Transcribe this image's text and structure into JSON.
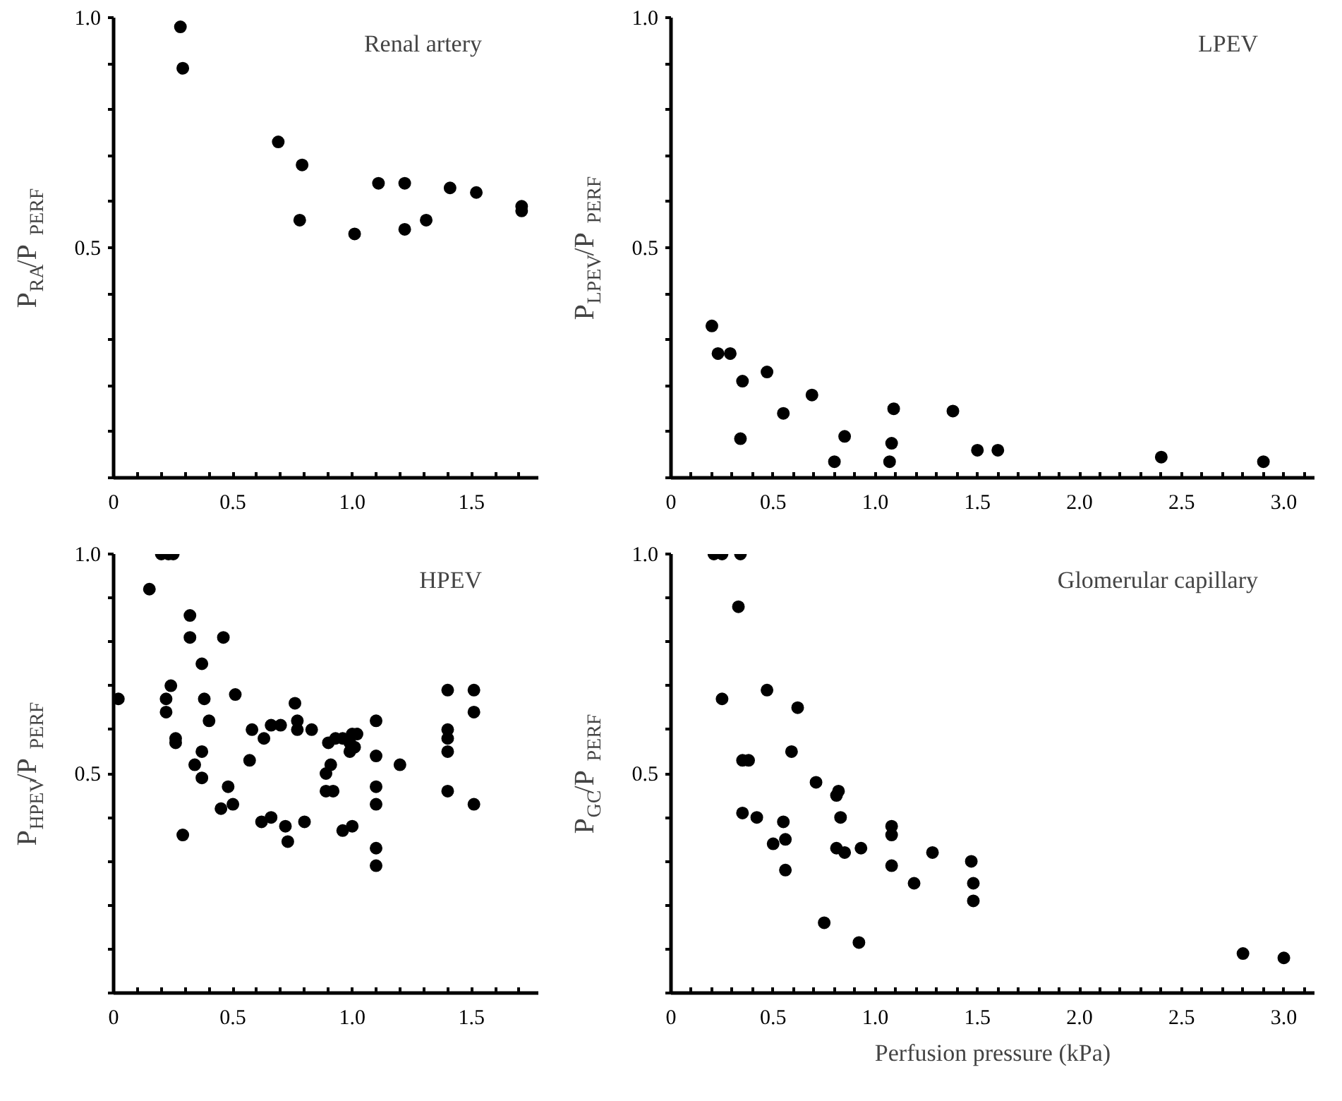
{
  "chart_data": [
    {
      "type": "scatter",
      "title": "Renal artery",
      "ylabel": "P$_{RA}$/P$_{PERF}$",
      "marker": "circle",
      "grid": false,
      "xlim": [
        0,
        1.78
      ],
      "ylim": [
        0,
        1.0
      ],
      "xticks": [
        0,
        {
          "value": 0.1,
          "label": null
        },
        {
          "value": 0.2,
          "label": null
        },
        {
          "value": 0.3,
          "label": null
        },
        {
          "value": 0.4,
          "label": null
        },
        {
          "value": 0.5,
          "label": "0.5"
        },
        {
          "value": 0.6,
          "label": null
        },
        {
          "value": 0.7,
          "label": null
        },
        {
          "value": 0.8,
          "label": null
        },
        {
          "value": 0.9,
          "label": null
        },
        {
          "value": 1.0,
          "label": "1.0"
        },
        {
          "value": 1.1,
          "label": null
        },
        {
          "value": 1.2,
          "label": null
        },
        {
          "value": 1.3,
          "label": null
        },
        {
          "value": 1.4,
          "label": null
        },
        {
          "value": 1.5,
          "label": "1.5"
        },
        {
          "value": 1.6,
          "label": null
        },
        {
          "value": 1.7,
          "label": null
        }
      ],
      "yticks": [
        {
          "value": 0,
          "label": null
        },
        {
          "value": 0.1,
          "label": null
        },
        {
          "value": 0.2,
          "label": null
        },
        {
          "value": 0.3,
          "label": null
        },
        {
          "value": 0.4,
          "label": null
        },
        {
          "value": 0.5,
          "label": "0.5"
        },
        {
          "value": 0.6,
          "label": null
        },
        {
          "value": 0.7,
          "label": null
        },
        {
          "value": 0.8,
          "label": null
        },
        {
          "value": 0.9,
          "label": null
        },
        {
          "value": 1.0,
          "label": "1.0"
        }
      ],
      "series": [
        {
          "color": "#000000",
          "x": [
            0.28,
            0.29,
            0.69,
            0.79,
            0.78,
            1.01,
            1.11,
            1.22,
            1.22,
            1.31,
            1.41,
            1.52,
            1.71,
            1.71
          ],
          "values": [
            0.98,
            0.89,
            0.73,
            0.68,
            0.56,
            0.53,
            0.64,
            0.64,
            0.54,
            0.56,
            0.63,
            0.62,
            0.59,
            0.58
          ]
        }
      ]
    },
    {
      "type": "scatter",
      "title": "LPEV",
      "ylabel": "P$_{LPEV}$/P$_{PERF}$",
      "marker": "circle",
      "grid": false,
      "xlim": [
        0,
        3.15
      ],
      "ylim": [
        0,
        1.0
      ],
      "xticks": [
        0,
        {
          "value": 0.1,
          "label": null
        },
        {
          "value": 0.2,
          "label": null
        },
        {
          "value": 0.3,
          "label": null
        },
        {
          "value": 0.4,
          "label": null
        },
        {
          "value": 0.5,
          "label": "0.5"
        },
        {
          "value": 0.6,
          "label": null
        },
        {
          "value": 0.7,
          "label": null
        },
        {
          "value": 0.8,
          "label": null
        },
        {
          "value": 0.9,
          "label": null
        },
        {
          "value": 1.0,
          "label": "1.0"
        },
        {
          "value": 1.1,
          "label": null
        },
        {
          "value": 1.2,
          "label": null
        },
        {
          "value": 1.3,
          "label": null
        },
        {
          "value": 1.4,
          "label": null
        },
        {
          "value": 1.5,
          "label": "1.5"
        },
        {
          "value": 1.6,
          "label": null
        },
        {
          "value": 1.7,
          "label": null
        },
        {
          "value": 1.8,
          "label": null
        },
        {
          "value": 1.9,
          "label": null
        },
        {
          "value": 2.0,
          "label": "2.0"
        },
        {
          "value": 2.1,
          "label": null
        },
        {
          "value": 2.2,
          "label": null
        },
        {
          "value": 2.3,
          "label": null
        },
        {
          "value": 2.4,
          "label": null
        },
        {
          "value": 2.5,
          "label": "2.5"
        },
        {
          "value": 2.6,
          "label": null
        },
        {
          "value": 2.7,
          "label": null
        },
        {
          "value": 2.8,
          "label": null
        },
        {
          "value": 2.9,
          "label": null
        },
        {
          "value": 3.0,
          "label": "3.0"
        },
        {
          "value": 3.1,
          "label": null
        }
      ],
      "yticks": [
        {
          "value": 0,
          "label": null
        },
        {
          "value": 0.1,
          "label": null
        },
        {
          "value": 0.2,
          "label": null
        },
        {
          "value": 0.3,
          "label": null
        },
        {
          "value": 0.4,
          "label": null
        },
        {
          "value": 0.5,
          "label": "0.5"
        },
        {
          "value": 0.6,
          "label": null
        },
        {
          "value": 0.7,
          "label": null
        },
        {
          "value": 0.8,
          "label": null
        },
        {
          "value": 0.9,
          "label": null
        },
        {
          "value": 1.0,
          "label": "1.0"
        }
      ],
      "series": [
        {
          "color": "#000000",
          "x": [
            0.2,
            0.23,
            0.29,
            0.35,
            0.47,
            0.34,
            0.55,
            0.69,
            0.8,
            0.85,
            1.09,
            1.08,
            1.07,
            1.38,
            1.5,
            1.6,
            2.4,
            2.9
          ],
          "values": [
            0.33,
            0.27,
            0.27,
            0.21,
            0.23,
            0.085,
            0.14,
            0.18,
            0.035,
            0.09,
            0.15,
            0.075,
            0.035,
            0.145,
            0.06,
            0.06,
            0.045,
            0.035
          ]
        }
      ]
    },
    {
      "type": "scatter",
      "title": "HPEV",
      "ylabel": "P$_{HPEV}$/P$_{PERF}$",
      "marker": "circle",
      "grid": false,
      "xlim": [
        0,
        1.78
      ],
      "ylim": [
        0,
        1.0
      ],
      "xticks": [
        0,
        {
          "value": 0.1,
          "label": null
        },
        {
          "value": 0.2,
          "label": null
        },
        {
          "value": 0.3,
          "label": null
        },
        {
          "value": 0.4,
          "label": null
        },
        {
          "value": 0.5,
          "label": "0.5"
        },
        {
          "value": 0.6,
          "label": null
        },
        {
          "value": 0.7,
          "label": null
        },
        {
          "value": 0.8,
          "label": null
        },
        {
          "value": 0.9,
          "label": null
        },
        {
          "value": 1.0,
          "label": "1.0"
        },
        {
          "value": 1.1,
          "label": null
        },
        {
          "value": 1.2,
          "label": null
        },
        {
          "value": 1.3,
          "label": null
        },
        {
          "value": 1.4,
          "label": null
        },
        {
          "value": 1.5,
          "label": "1.5"
        },
        {
          "value": 1.6,
          "label": null
        },
        {
          "value": 1.7,
          "label": null
        }
      ],
      "yticks": [
        {
          "value": 0,
          "label": null
        },
        {
          "value": 0.1,
          "label": null
        },
        {
          "value": 0.2,
          "label": null
        },
        {
          "value": 0.3,
          "label": null
        },
        {
          "value": 0.4,
          "label": null
        },
        {
          "value": 0.5,
          "label": "0.5"
        },
        {
          "value": 0.6,
          "label": null
        },
        {
          "value": 0.7,
          "label": null
        },
        {
          "value": 0.8,
          "label": null
        },
        {
          "value": 0.9,
          "label": null
        },
        {
          "value": 1.0,
          "label": "1.0"
        }
      ],
      "series": [
        {
          "color": "#000000",
          "x": [
            0.02,
            0.15,
            0.2,
            0.23,
            0.25,
            0.24,
            0.22,
            0.22,
            0.26,
            0.26,
            0.29,
            0.32,
            0.32,
            0.37,
            0.38,
            0.4,
            0.37,
            0.34,
            0.37,
            0.46,
            0.51,
            0.48,
            0.45,
            0.5,
            0.57,
            0.58,
            0.63,
            0.66,
            0.7,
            0.62,
            0.66,
            0.76,
            0.77,
            0.77,
            0.83,
            0.72,
            0.73,
            0.8,
            0.9,
            0.89,
            0.91,
            0.89,
            0.92,
            0.93,
            0.96,
            0.99,
            1.0,
            1.02,
            1.01,
            0.99,
            0.96,
            1.0,
            1.1,
            1.1,
            1.1,
            1.1,
            1.1,
            1.1,
            1.2,
            1.4,
            1.4,
            1.4,
            1.4,
            1.4,
            1.51,
            1.51,
            1.51
          ],
          "values": [
            0.67,
            0.92,
            1.0,
            1.0,
            1.0,
            0.7,
            0.67,
            0.64,
            0.58,
            0.57,
            0.36,
            0.86,
            0.81,
            0.75,
            0.67,
            0.62,
            0.55,
            0.52,
            0.49,
            0.81,
            0.68,
            0.47,
            0.42,
            0.43,
            0.53,
            0.6,
            0.58,
            0.61,
            0.61,
            0.39,
            0.4,
            0.66,
            0.62,
            0.6,
            0.6,
            0.38,
            0.345,
            0.39,
            0.57,
            0.5,
            0.52,
            0.46,
            0.46,
            0.58,
            0.58,
            0.57,
            0.59,
            0.59,
            0.56,
            0.55,
            0.37,
            0.38,
            0.62,
            0.54,
            0.47,
            0.43,
            0.33,
            0.29,
            0.52,
            0.69,
            0.6,
            0.58,
            0.55,
            0.46,
            0.69,
            0.64,
            0.43
          ]
        }
      ]
    },
    {
      "type": "scatter",
      "title": "Glomerular capillary",
      "ylabel": "P$_{GC}$/P$_{PERF}$",
      "xlabel": "Perfusion pressure (kPa)",
      "marker": "circle",
      "grid": false,
      "xlim": [
        0,
        3.15
      ],
      "ylim": [
        0,
        1.0
      ],
      "xticks": [
        0,
        {
          "value": 0.1,
          "label": null
        },
        {
          "value": 0.2,
          "label": null
        },
        {
          "value": 0.3,
          "label": null
        },
        {
          "value": 0.4,
          "label": null
        },
        {
          "value": 0.5,
          "label": "0.5"
        },
        {
          "value": 0.6,
          "label": null
        },
        {
          "value": 0.7,
          "label": null
        },
        {
          "value": 0.8,
          "label": null
        },
        {
          "value": 0.9,
          "label": null
        },
        {
          "value": 1.0,
          "label": "1.0"
        },
        {
          "value": 1.1,
          "label": null
        },
        {
          "value": 1.2,
          "label": null
        },
        {
          "value": 1.3,
          "label": null
        },
        {
          "value": 1.4,
          "label": null
        },
        {
          "value": 1.5,
          "label": "1.5"
        },
        {
          "value": 1.6,
          "label": null
        },
        {
          "value": 1.7,
          "label": null
        },
        {
          "value": 1.8,
          "label": null
        },
        {
          "value": 1.9,
          "label": null
        },
        {
          "value": 2.0,
          "label": "2.0"
        },
        {
          "value": 2.1,
          "label": null
        },
        {
          "value": 2.2,
          "label": null
        },
        {
          "value": 2.3,
          "label": null
        },
        {
          "value": 2.4,
          "label": null
        },
        {
          "value": 2.5,
          "label": "2.5"
        },
        {
          "value": 2.6,
          "label": null
        },
        {
          "value": 2.7,
          "label": null
        },
        {
          "value": 2.8,
          "label": null
        },
        {
          "value": 2.9,
          "label": null
        },
        {
          "value": 3.0,
          "label": "3.0"
        },
        {
          "value": 3.1,
          "label": null
        }
      ],
      "yticks": [
        {
          "value": 0,
          "label": null
        },
        {
          "value": 0.1,
          "label": null
        },
        {
          "value": 0.2,
          "label": null
        },
        {
          "value": 0.3,
          "label": null
        },
        {
          "value": 0.4,
          "label": null
        },
        {
          "value": 0.5,
          "label": "0.5"
        },
        {
          "value": 0.6,
          "label": null
        },
        {
          "value": 0.7,
          "label": null
        },
        {
          "value": 0.8,
          "label": null
        },
        {
          "value": 0.9,
          "label": null
        },
        {
          "value": 1.0,
          "label": "1.0"
        }
      ],
      "series": [
        {
          "color": "#000000",
          "x": [
            0.21,
            0.25,
            0.34,
            0.33,
            0.25,
            0.47,
            0.62,
            0.35,
            0.38,
            0.59,
            0.71,
            0.81,
            0.82,
            0.35,
            0.42,
            0.55,
            0.83,
            0.5,
            0.56,
            0.56,
            0.81,
            0.85,
            0.93,
            0.75,
            0.92,
            1.08,
            1.08,
            1.08,
            1.19,
            1.28,
            1.47,
            1.48,
            1.48,
            2.8,
            3.0
          ],
          "values": [
            1.0,
            1.0,
            1.0,
            0.88,
            0.67,
            0.69,
            0.65,
            0.53,
            0.53,
            0.55,
            0.48,
            0.45,
            0.46,
            0.41,
            0.4,
            0.39,
            0.4,
            0.34,
            0.35,
            0.28,
            0.33,
            0.32,
            0.33,
            0.16,
            0.115,
            0.38,
            0.36,
            0.29,
            0.25,
            0.32,
            0.3,
            0.25,
            0.21,
            0.09,
            0.08
          ]
        }
      ]
    }
  ]
}
